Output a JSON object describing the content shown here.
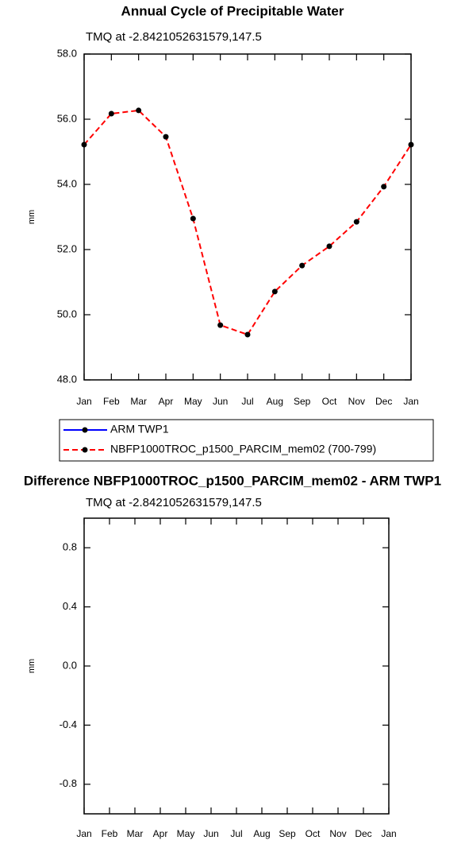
{
  "chart_data": [
    {
      "type": "line",
      "title": "Annual Cycle of Precipitable Water",
      "subtitle": "TMQ at -2.8421052631579,147.5",
      "y_label": "mm",
      "categories": [
        "Jan",
        "Feb",
        "Mar",
        "Apr",
        "May",
        "Jun",
        "Jul",
        "Aug",
        "Sep",
        "Oct",
        "Nov",
        "Dec",
        "Jan"
      ],
      "ylim": [
        48,
        58
      ],
      "yticks": [
        {
          "value": 48,
          "label": "48.0"
        },
        {
          "value": 50,
          "label": "50.0"
        },
        {
          "value": 52,
          "label": "52.0"
        },
        {
          "value": 54,
          "label": "54.0"
        },
        {
          "value": 56,
          "label": "56.0"
        },
        {
          "value": 58,
          "label": "58.0"
        }
      ],
      "marker_color": "#000000",
      "series": [
        {
          "name": "ARM TWP1",
          "color": "#0000ff",
          "dashed": false,
          "values": [
            null,
            null,
            null,
            null,
            null,
            null,
            null,
            null,
            null,
            null,
            null,
            null,
            null
          ]
        },
        {
          "name": "NBFP1000TROC_p1500_PARCIM_mem02 (700-799)",
          "color": "#ff0000",
          "dashed": true,
          "values": [
            55.22,
            56.17,
            56.27,
            55.46,
            52.95,
            49.68,
            49.39,
            50.71,
            51.51,
            52.1,
            52.85,
            53.93,
            55.22
          ]
        }
      ]
    },
    {
      "type": "line",
      "title": "Difference NBFP1000TROC_p1500_PARCIM_mem02 - ARM TWP1",
      "subtitle": "TMQ at -2.8421052631579,147.5",
      "y_label": "mm",
      "categories": [
        "Jan",
        "Feb",
        "Mar",
        "Apr",
        "May",
        "Jun",
        "Jul",
        "Aug",
        "Sep",
        "Oct",
        "Nov",
        "Dec",
        "Jan"
      ],
      "ylim": [
        -1,
        1
      ],
      "yticks": [
        -0.8,
        -0.4,
        {
          "value": 0,
          "label": "0.0"
        },
        0.4,
        0.8
      ],
      "series": []
    }
  ]
}
